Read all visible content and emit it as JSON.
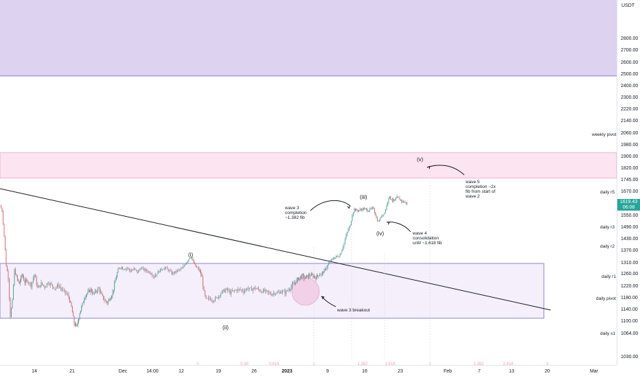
{
  "chart_data": {
    "type": "candlestick",
    "currency": "USDT",
    "y_ticks": [
      1030,
      1064,
      1100,
      1140,
      1180,
      1220,
      1260,
      1310,
      1370,
      1430,
      1490,
      1550,
      1620,
      1670,
      1745,
      1820,
      1900,
      1980,
      2060,
      2140,
      2220,
      2300,
      2400,
      2500,
      2600,
      2700,
      2800
    ],
    "y_tick_labels": [
      "1030.00",
      "1064.00",
      "1100.00",
      "1140.00",
      "1180.00",
      "1220.00",
      "1260.00",
      "1310.00",
      "1370.00",
      "1430.00",
      "1490.00",
      "1550.00",
      "1620.00",
      "1670.00",
      "1745.00",
      "1820.00",
      "1900.00",
      "1980.00",
      "2060.00",
      "2140.00",
      "2220.00",
      "2300.00",
      "2400.00",
      "2500.00",
      "2600.00",
      "2700.00",
      "2800.00"
    ],
    "x_labels": [
      {
        "text": "14",
        "bold": false
      },
      {
        "text": "21",
        "bold": false
      },
      {
        "text": "Dec",
        "bold": false
      },
      {
        "text": "14:00",
        "bold": false
      },
      {
        "text": "12",
        "bold": false
      },
      {
        "text": "19",
        "bold": false
      },
      {
        "text": "26",
        "bold": false
      },
      {
        "text": "2023",
        "bold": true
      },
      {
        "text": "9",
        "bold": false
      },
      {
        "text": "16",
        "bold": false
      },
      {
        "text": "23",
        "bold": false
      },
      {
        "text": "Feb",
        "bold": false
      },
      {
        "text": "7",
        "bold": false
      },
      {
        "text": "13",
        "bold": false
      },
      {
        "text": "20",
        "bold": false
      },
      {
        "text": "Mar",
        "bold": false
      }
    ],
    "close_path": [
      [
        0,
        1610
      ],
      [
        3,
        1580
      ],
      [
        6,
        1450
      ],
      [
        9,
        1300
      ],
      [
        12,
        1250
      ],
      [
        15,
        1120
      ],
      [
        18,
        1170
      ],
      [
        21,
        1280
      ],
      [
        24,
        1250
      ],
      [
        28,
        1230
      ],
      [
        32,
        1260
      ],
      [
        36,
        1235
      ],
      [
        40,
        1240
      ],
      [
        45,
        1225
      ],
      [
        50,
        1260
      ],
      [
        55,
        1215
      ],
      [
        60,
        1230
      ],
      [
        65,
        1220
      ],
      [
        70,
        1235
      ],
      [
        75,
        1225
      ],
      [
        80,
        1215
      ],
      [
        85,
        1225
      ],
      [
        90,
        1210
      ],
      [
        95,
        1200
      ],
      [
        100,
        1185
      ],
      [
        104,
        1150
      ],
      [
        108,
        1095
      ],
      [
        112,
        1085
      ],
      [
        116,
        1130
      ],
      [
        120,
        1160
      ],
      [
        124,
        1190
      ],
      [
        128,
        1200
      ],
      [
        132,
        1210
      ],
      [
        136,
        1195
      ],
      [
        140,
        1205
      ],
      [
        144,
        1215
      ],
      [
        148,
        1190
      ],
      [
        152,
        1175
      ],
      [
        156,
        1165
      ],
      [
        160,
        1180
      ],
      [
        164,
        1200
      ],
      [
        168,
        1240
      ],
      [
        172,
        1280
      ],
      [
        176,
        1295
      ],
      [
        180,
        1285
      ],
      [
        185,
        1290
      ],
      [
        190,
        1275
      ],
      [
        195,
        1285
      ],
      [
        200,
        1270
      ],
      [
        205,
        1290
      ],
      [
        210,
        1280
      ],
      [
        215,
        1275
      ],
      [
        220,
        1265
      ],
      [
        225,
        1255
      ],
      [
        230,
        1270
      ],
      [
        235,
        1285
      ],
      [
        240,
        1290
      ],
      [
        245,
        1280
      ],
      [
        250,
        1265
      ],
      [
        255,
        1270
      ],
      [
        260,
        1280
      ],
      [
        265,
        1285
      ],
      [
        270,
        1310
      ],
      [
        275,
        1335
      ],
      [
        278,
        1345
      ],
      [
        281,
        1320
      ],
      [
        285,
        1295
      ],
      [
        290,
        1280
      ],
      [
        294,
        1250
      ],
      [
        297,
        1200
      ],
      [
        300,
        1175
      ],
      [
        305,
        1180
      ],
      [
        310,
        1175
      ],
      [
        315,
        1180
      ],
      [
        320,
        1195
      ],
      [
        325,
        1205
      ],
      [
        330,
        1210
      ],
      [
        335,
        1200
      ],
      [
        340,
        1205
      ],
      [
        345,
        1210
      ],
      [
        350,
        1210
      ],
      [
        355,
        1205
      ],
      [
        360,
        1215
      ],
      [
        365,
        1210
      ],
      [
        370,
        1215
      ],
      [
        375,
        1212
      ],
      [
        380,
        1205
      ],
      [
        385,
        1205
      ],
      [
        390,
        1200
      ],
      [
        395,
        1195
      ],
      [
        400,
        1200
      ],
      [
        405,
        1198
      ],
      [
        410,
        1205
      ],
      [
        415,
        1200
      ],
      [
        420,
        1210
      ],
      [
        424,
        1220
      ],
      [
        428,
        1230
      ],
      [
        432,
        1240
      ],
      [
        436,
        1250
      ],
      [
        440,
        1255
      ],
      [
        444,
        1248
      ],
      [
        448,
        1255
      ],
      [
        452,
        1258
      ],
      [
        456,
        1255
      ],
      [
        460,
        1250
      ],
      [
        464,
        1260
      ],
      [
        468,
        1262
      ],
      [
        472,
        1275
      ],
      [
        476,
        1295
      ],
      [
        480,
        1315
      ],
      [
        484,
        1330
      ],
      [
        488,
        1340
      ],
      [
        492,
        1345
      ],
      [
        495,
        1350
      ],
      [
        498,
        1380
      ],
      [
        501,
        1410
      ],
      [
        504,
        1450
      ],
      [
        507,
        1480
      ],
      [
        510,
        1500
      ],
      [
        513,
        1560
      ],
      [
        516,
        1590
      ],
      [
        520,
        1580
      ],
      [
        524,
        1585
      ],
      [
        528,
        1590
      ],
      [
        532,
        1590
      ],
      [
        536,
        1580
      ],
      [
        540,
        1590
      ],
      [
        544,
        1595
      ],
      [
        548,
        1540
      ],
      [
        551,
        1520
      ],
      [
        554,
        1540
      ],
      [
        557,
        1560
      ],
      [
        560,
        1570
      ],
      [
        563,
        1610
      ],
      [
        566,
        1650
      ],
      [
        570,
        1640
      ],
      [
        574,
        1630
      ],
      [
        578,
        1645
      ],
      [
        582,
        1640
      ],
      [
        586,
        1630
      ],
      [
        590,
        1625
      ],
      [
        593,
        1620
      ]
    ],
    "key_lines": {
      "weekly_pivot": 1930,
      "daily_r5": 1675,
      "daily_r3": 1510,
      "daily_r2": 1445,
      "daily_r1": 1310,
      "daily_pivot": 1225,
      "daily_s1": 1082
    },
    "zones": [
      {
        "kind": "supply",
        "from": 2490,
        "to": 3000
      },
      {
        "kind": "resistance",
        "from": 1760,
        "to": 1930
      },
      {
        "kind": "range",
        "from": 1112,
        "to": 1310
      }
    ],
    "last_price": "1619.43",
    "countdown": "06:08"
  },
  "pivot_labels": [
    "weekly pivot",
    "daily r5",
    "daily r3",
    "daily r2",
    "daily r1",
    "daily pivot",
    "daily s1"
  ],
  "waves": [
    "(i)",
    "(ii)",
    "(iii)",
    "(iv)",
    "(v)"
  ],
  "annotations": {
    "wave3_completion": [
      "wave 3",
      "completion",
      "~1.382 fib"
    ],
    "wave4": [
      "wave 4",
      "consolidation",
      "until ~1.618 fib"
    ],
    "wave5": [
      "wave 5",
      "completion ~2x",
      "fib from start of",
      "wave 2"
    ],
    "wave3_breakout": "wave 3 breakout"
  },
  "fib_labels": [
    "0",
    "0.38",
    "0.618",
    "1",
    "1.382",
    "1.618",
    "2",
    "2.382",
    "2.618",
    "3"
  ],
  "colors": {
    "up": "#26a69a",
    "down": "#ef5350",
    "candle_neutral": "#787b86",
    "supply_zone": "#ddd2ef",
    "resistance_zone": "#fce4f1",
    "range_zone": "#f4effa",
    "zone_border": "#8c7fd1",
    "pink_border": "#e8a6cf",
    "price_tag": "#26a69a"
  }
}
